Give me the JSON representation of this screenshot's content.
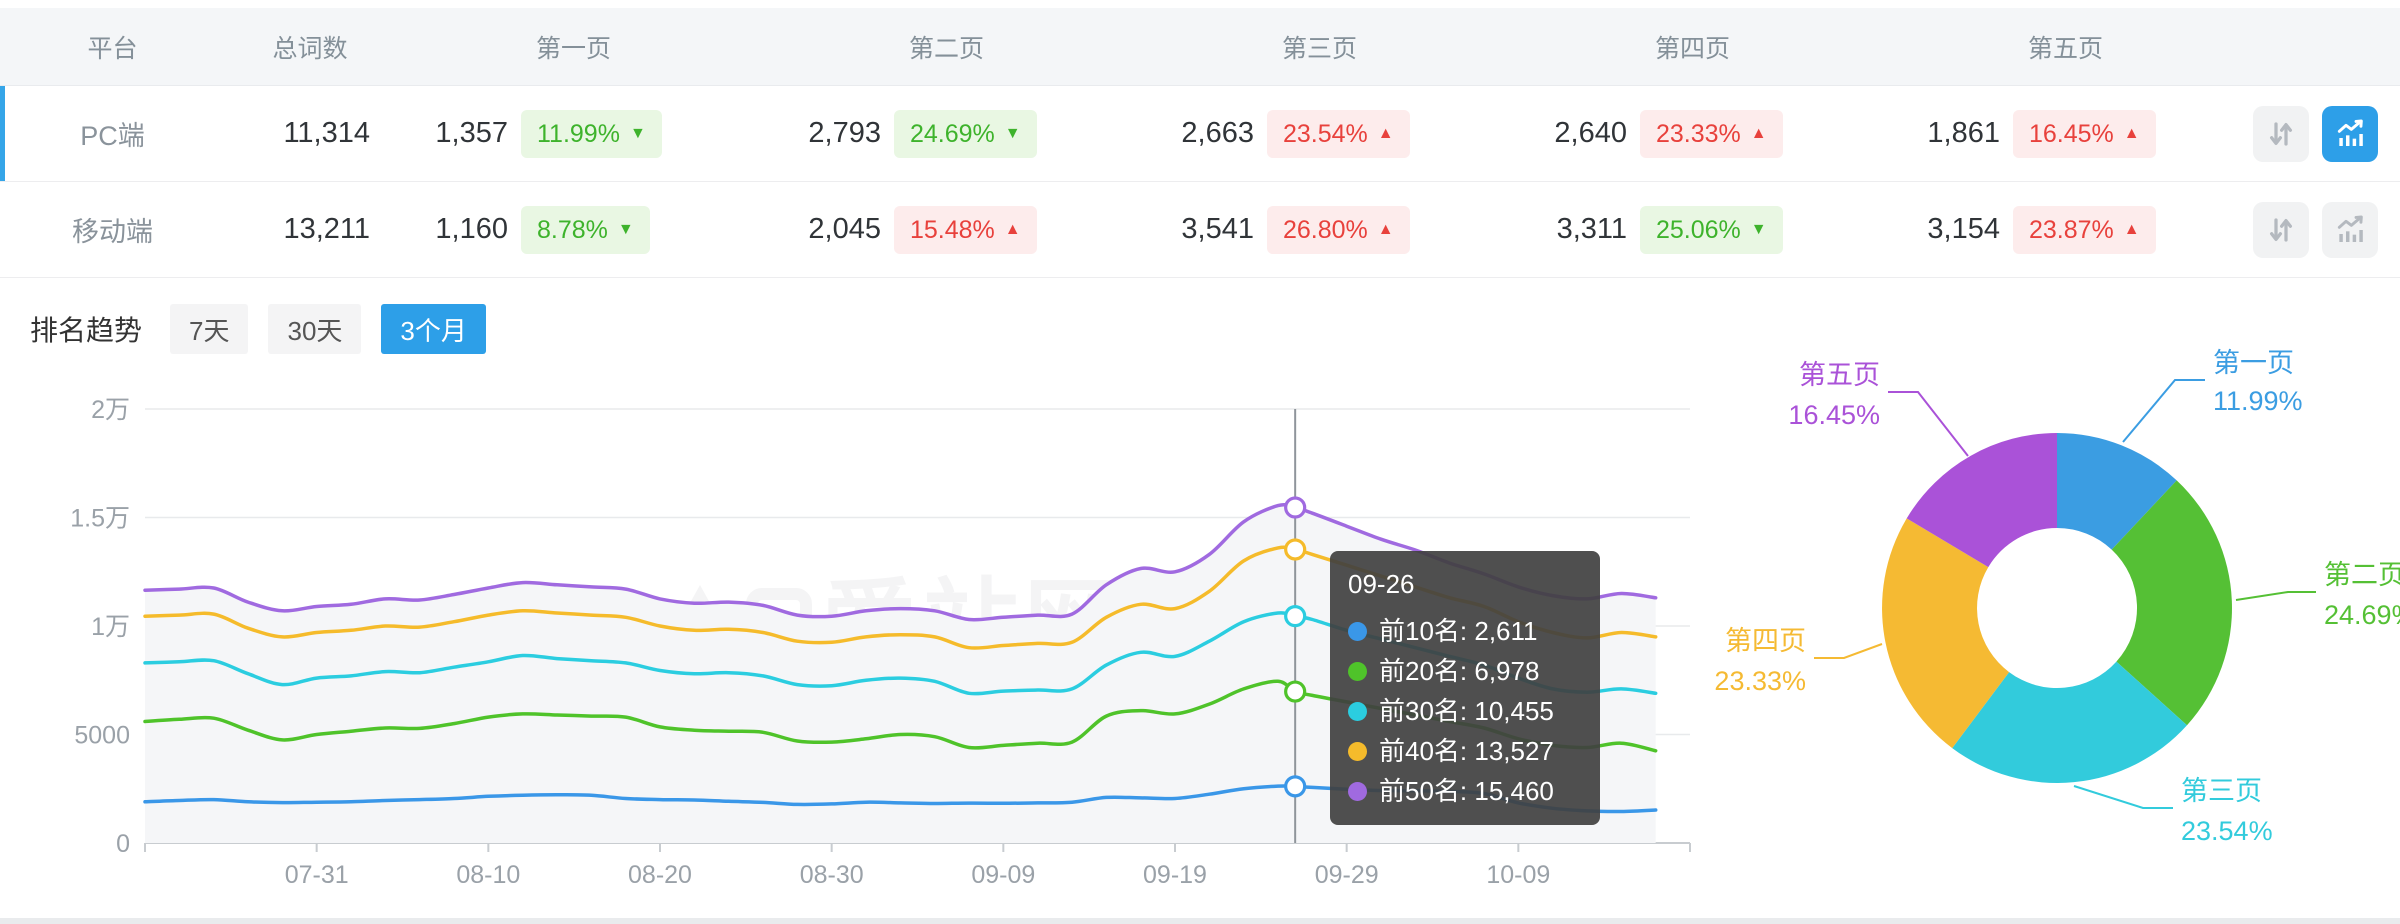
{
  "table": {
    "headers": {
      "platform": "平台",
      "total": "总词数",
      "pages": [
        "第一页",
        "第二页",
        "第三页",
        "第四页",
        "第五页"
      ]
    },
    "rows": [
      {
        "platform": "PC端",
        "total": "11,314",
        "selected": true,
        "chart_active": true,
        "pages": [
          {
            "count": "1,357",
            "pct": "11.99%",
            "arrow": "▼",
            "tone": "green"
          },
          {
            "count": "2,793",
            "pct": "24.69%",
            "arrow": "▼",
            "tone": "green"
          },
          {
            "count": "2,663",
            "pct": "23.54%",
            "arrow": "▲",
            "tone": "red"
          },
          {
            "count": "2,640",
            "pct": "23.33%",
            "arrow": "▲",
            "tone": "red"
          },
          {
            "count": "1,861",
            "pct": "16.45%",
            "arrow": "▲",
            "tone": "red"
          }
        ]
      },
      {
        "platform": "移动端",
        "total": "13,211",
        "selected": false,
        "chart_active": false,
        "pages": [
          {
            "count": "1,160",
            "pct": "8.78%",
            "arrow": "▼",
            "tone": "green"
          },
          {
            "count": "2,045",
            "pct": "15.48%",
            "arrow": "▲",
            "tone": "red"
          },
          {
            "count": "3,541",
            "pct": "26.80%",
            "arrow": "▲",
            "tone": "red"
          },
          {
            "count": "3,311",
            "pct": "25.06%",
            "arrow": "▼",
            "tone": "green"
          },
          {
            "count": "3,154",
            "pct": "23.87%",
            "arrow": "▲",
            "tone": "red"
          }
        ]
      }
    ]
  },
  "trend": {
    "title": "排名趋势",
    "tabs": [
      {
        "label": "7天",
        "active": false
      },
      {
        "label": "30天",
        "active": false
      },
      {
        "label": "3个月",
        "active": true
      }
    ]
  },
  "watermark": "爱站网",
  "tooltip": {
    "title": "09-26",
    "items": [
      {
        "label": "前10名",
        "value": "2,611",
        "color": "#3a97e8"
      },
      {
        "label": "前20名",
        "value": "6,978",
        "color": "#4fc32a"
      },
      {
        "label": "前30名",
        "value": "10,455",
        "color": "#2bcde0"
      },
      {
        "label": "前40名",
        "value": "13,527",
        "color": "#f5bb2b"
      },
      {
        "label": "前50名",
        "value": "15,460",
        "color": "#a06ae0"
      }
    ]
  },
  "chart_data": [
    {
      "type": "line",
      "title": "排名趋势（3个月）",
      "grid": true,
      "legend_position": "none",
      "x_domain_days": [
        0,
        90
      ],
      "ylim": [
        0,
        20000
      ],
      "y_ticks": [
        {
          "value": 0,
          "label": "0"
        },
        {
          "value": 5000,
          "label": "5000"
        },
        {
          "value": 10000,
          "label": "1万"
        },
        {
          "value": 15000,
          "label": "1.5万"
        },
        {
          "value": 20000,
          "label": "2万"
        }
      ],
      "x_ticks": [
        {
          "day": 10,
          "label": "07-31"
        },
        {
          "day": 20,
          "label": "08-10"
        },
        {
          "day": 30,
          "label": "08-20"
        },
        {
          "day": 40,
          "label": "08-30"
        },
        {
          "day": 50,
          "label": "09-09"
        },
        {
          "day": 60,
          "label": "09-19"
        },
        {
          "day": 70,
          "label": "09-29"
        },
        {
          "day": 80,
          "label": "10-09"
        }
      ],
      "days": [
        0,
        2,
        4,
        6,
        8,
        10,
        12,
        14,
        16,
        18,
        20,
        22,
        24,
        26,
        28,
        30,
        32,
        34,
        36,
        38,
        40,
        42,
        44,
        46,
        48,
        50,
        52,
        54,
        56,
        58,
        60,
        62,
        64,
        66,
        67,
        68,
        70,
        72,
        74,
        76,
        78,
        80,
        82,
        84,
        86,
        88
      ],
      "series": [
        {
          "name": "前10名",
          "color": "#3a97e8",
          "values": [
            1900,
            1960,
            2000,
            1900,
            1860,
            1880,
            1900,
            1960,
            2000,
            2050,
            2150,
            2200,
            2220,
            2200,
            2050,
            2000,
            1980,
            1920,
            1870,
            1780,
            1800,
            1880,
            1850,
            1820,
            1840,
            1830,
            1850,
            1880,
            2100,
            2080,
            2050,
            2250,
            2500,
            2620,
            2611,
            2560,
            2480,
            2420,
            2410,
            2380,
            2280,
            1850,
            1600,
            1480,
            1450,
            1520
          ]
        },
        {
          "name": "前20名",
          "color": "#4fc32a",
          "values": [
            5600,
            5700,
            5750,
            5200,
            4750,
            5000,
            5150,
            5300,
            5280,
            5500,
            5800,
            5950,
            5900,
            5850,
            5800,
            5350,
            5200,
            5150,
            5100,
            4700,
            4650,
            4800,
            5000,
            4900,
            4400,
            4500,
            4600,
            4650,
            5850,
            6100,
            5950,
            6400,
            7100,
            7450,
            6978,
            6800,
            6500,
            6200,
            5900,
            5600,
            5300,
            4800,
            4500,
            4400,
            4600,
            4250
          ]
        },
        {
          "name": "前30名",
          "color": "#2bcde0",
          "values": [
            8300,
            8350,
            8400,
            7800,
            7300,
            7600,
            7700,
            7900,
            7850,
            8100,
            8350,
            8640,
            8500,
            8400,
            8300,
            7950,
            7800,
            7850,
            7700,
            7300,
            7250,
            7500,
            7600,
            7450,
            6900,
            7000,
            7050,
            7100,
            8200,
            8790,
            8600,
            9300,
            10200,
            10600,
            10455,
            10300,
            9800,
            9400,
            9000,
            8600,
            8200,
            7600,
            7100,
            6950,
            7100,
            6900
          ]
        },
        {
          "name": "前40名",
          "color": "#f5bb2b",
          "values": [
            10450,
            10500,
            10550,
            9900,
            9500,
            9700,
            9800,
            10000,
            9950,
            10200,
            10500,
            10700,
            10600,
            10500,
            10400,
            10000,
            9800,
            9850,
            9700,
            9300,
            9250,
            9500,
            9600,
            9500,
            9000,
            9100,
            9200,
            9250,
            10400,
            11000,
            10800,
            11600,
            13000,
            13600,
            13527,
            13300,
            12800,
            12300,
            11800,
            11300,
            10900,
            10200,
            9700,
            9450,
            9700,
            9500
          ]
        },
        {
          "name": "前50名",
          "color": "#a06ae0",
          "values": [
            11650,
            11700,
            11750,
            11100,
            10700,
            10900,
            11000,
            11250,
            11200,
            11450,
            11750,
            12000,
            11900,
            11800,
            11700,
            11250,
            11050,
            11100,
            10950,
            10500,
            10450,
            10700,
            10800,
            10700,
            10300,
            10400,
            10500,
            10550,
            11900,
            12650,
            12500,
            13300,
            14800,
            15550,
            15460,
            15200,
            14600,
            14000,
            13500,
            12900,
            12400,
            11800,
            11400,
            11250,
            11500,
            11300
          ]
        }
      ],
      "highlight": {
        "day": 67,
        "date": "09-26",
        "values": [
          2611,
          6978,
          10455,
          13527,
          15460
        ]
      }
    },
    {
      "type": "pie",
      "donut": true,
      "labels": [
        "第一页",
        "第二页",
        "第三页",
        "第四页",
        "第五页"
      ],
      "values": [
        11.99,
        24.69,
        23.54,
        23.33,
        16.45
      ],
      "unit": "%",
      "colors": [
        "#3b9de2",
        "#55c035",
        "#32cbdc",
        "#f5ba33",
        "#aa52d8"
      ]
    }
  ],
  "colors": {
    "accent_blue": "#2d9fe8",
    "row_accent": "#35a5e8",
    "badge_green_text": "#3eb32c",
    "badge_red_text": "#e8413c",
    "axis_text": "#9aa1a8",
    "grid_line": "#e8eaec"
  }
}
